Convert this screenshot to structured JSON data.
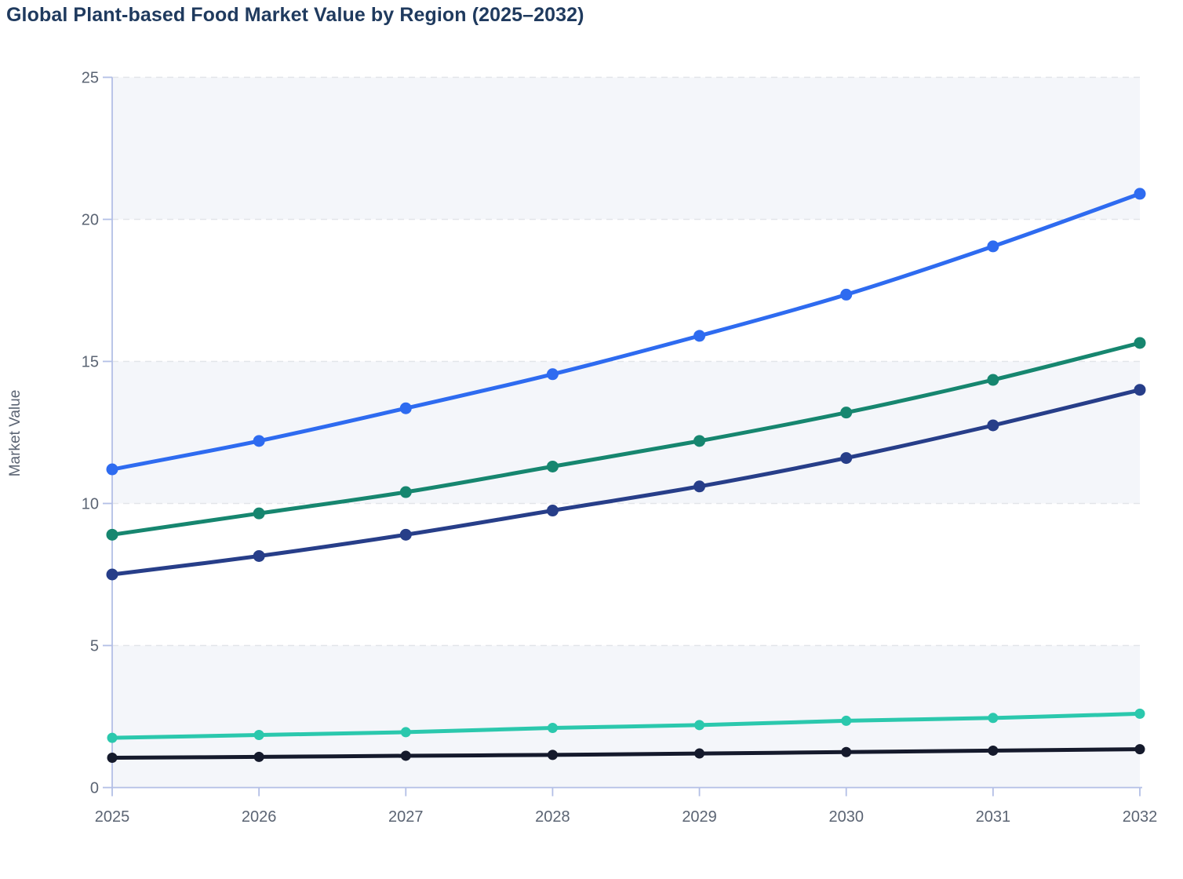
{
  "title": {
    "text": "Global Plant-based Food Market Value by Region (2025–2032)",
    "color": "#1f3a5e"
  },
  "chart_data": {
    "type": "line",
    "title": "Global Plant-based Food Market Value by Region (2025–2032)",
    "xlabel": "",
    "ylabel": "Market Value",
    "x": [
      2025,
      2026,
      2027,
      2028,
      2029,
      2030,
      2031,
      2032
    ],
    "x_tick_labels": [
      "2025",
      "2026",
      "2027",
      "2028",
      "2029",
      "2030",
      "2031",
      "2032"
    ],
    "y_ticks": [
      0,
      5,
      10,
      15,
      20,
      25
    ],
    "y_tick_labels": [
      "0",
      "5",
      "10",
      "15",
      "20",
      "25"
    ],
    "ylim": [
      0,
      25
    ],
    "grid": "horizontal-dashed",
    "zebra_bands": [
      [
        0,
        5
      ],
      [
        10,
        15
      ],
      [
        20,
        25
      ]
    ],
    "legend_position": "none-visible",
    "series": [
      {
        "name": "blue-line",
        "color": "#2e6bf0",
        "marker": "circle",
        "values": [
          11.2,
          12.2,
          13.35,
          14.55,
          15.9,
          17.35,
          19.05,
          20.9
        ]
      },
      {
        "name": "green-line",
        "color": "#16866f",
        "marker": "circle",
        "values": [
          8.9,
          9.65,
          10.4,
          11.3,
          12.2,
          13.2,
          14.35,
          15.65
        ]
      },
      {
        "name": "navy-line",
        "color": "#273e89",
        "marker": "circle",
        "values": [
          7.5,
          8.15,
          8.9,
          9.75,
          10.6,
          11.6,
          12.75,
          14.0
        ]
      },
      {
        "name": "teal-line",
        "color": "#2bc8ad",
        "marker": "circle",
        "values": [
          1.75,
          1.85,
          1.95,
          2.1,
          2.2,
          2.35,
          2.45,
          2.6
        ]
      },
      {
        "name": "black-line",
        "color": "#151a2c",
        "marker": "circle",
        "values": [
          1.05,
          1.08,
          1.12,
          1.15,
          1.2,
          1.25,
          1.3,
          1.35
        ]
      }
    ],
    "style": {
      "band_color": "#f4f6fa",
      "gridline_color": "#e2e5e9",
      "axis_color": "#b3bfe6",
      "tick_label_color": "#5b6473",
      "background_color": "#ffffff"
    }
  }
}
